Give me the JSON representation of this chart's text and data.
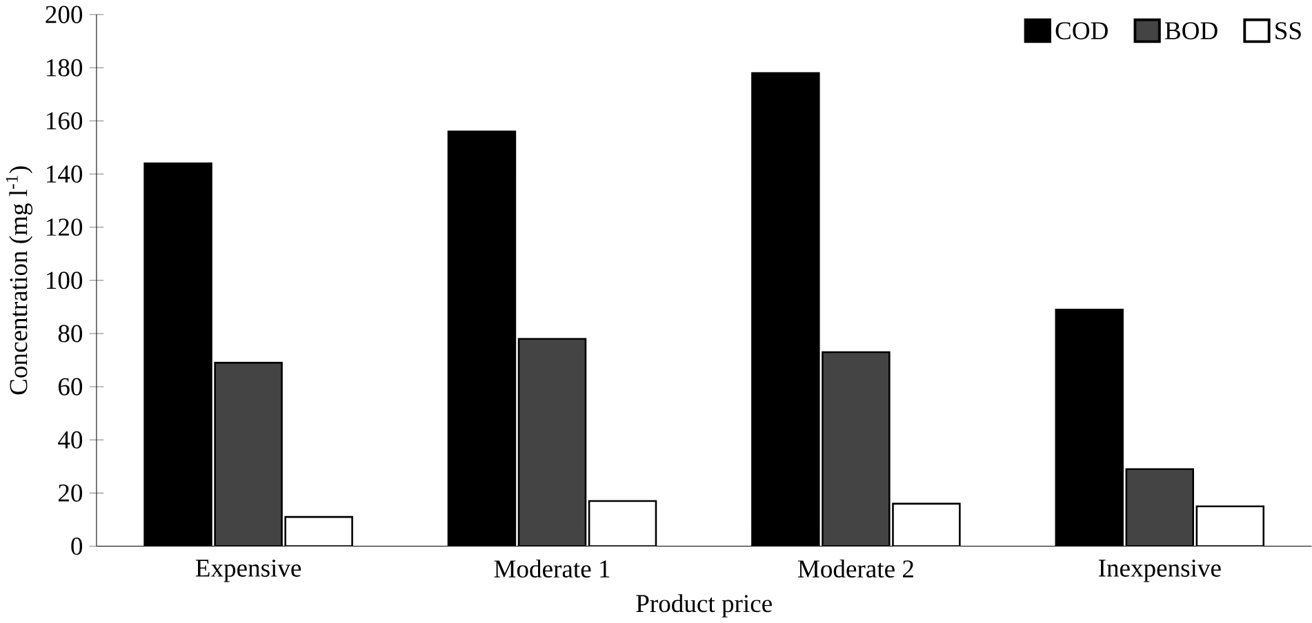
{
  "chart_data": {
    "type": "bar",
    "xlabel": "Product price",
    "ylabel": "Concentration (mg l$^{-1}$)",
    "categories": [
      "Expensive",
      "Moderate 1",
      "Moderate 2",
      "Inexpensive"
    ],
    "series": [
      {
        "name": "COD",
        "color": "#000000",
        "values": [
          144,
          156,
          178,
          89
        ]
      },
      {
        "name": "BOD",
        "color": "#444444",
        "values": [
          69,
          78,
          73,
          29
        ]
      },
      {
        "name": "SS",
        "color": "#ffffff",
        "values": [
          11,
          17,
          16,
          15
        ]
      }
    ],
    "ylim": [
      0,
      200
    ],
    "yticks": [
      0,
      20,
      40,
      60,
      80,
      100,
      120,
      140,
      160,
      180,
      200
    ],
    "legend": "top right",
    "grid": false
  }
}
